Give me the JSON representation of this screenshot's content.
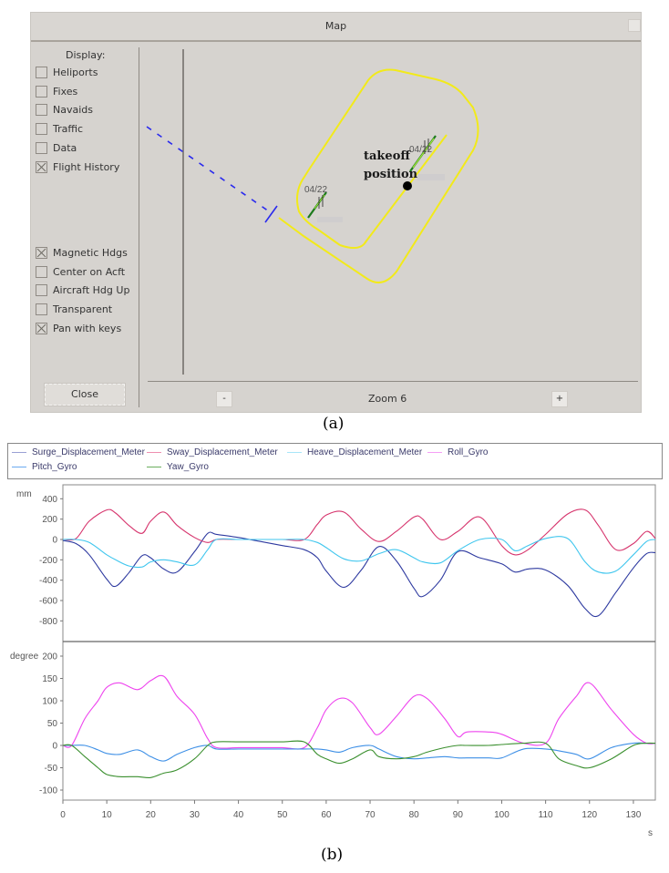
{
  "window": {
    "title": "Map",
    "display_label": "Display:",
    "checkboxes_top": [
      {
        "label": "Heliports",
        "checked": false
      },
      {
        "label": "Fixes",
        "checked": false
      },
      {
        "label": "Navaids",
        "checked": false
      },
      {
        "label": "Traffic",
        "checked": false
      },
      {
        "label": "Data",
        "checked": false
      },
      {
        "label": "Flight History",
        "checked": true
      }
    ],
    "checkboxes_bottom": [
      {
        "label": "Magnetic Hdgs",
        "checked": true
      },
      {
        "label": "Center on Acft",
        "checked": false
      },
      {
        "label": "Aircraft Hdg Up",
        "checked": false
      },
      {
        "label": "Transparent",
        "checked": false
      },
      {
        "label": "Pan with keys",
        "checked": true
      }
    ],
    "close_label": "Close",
    "zoom_minus": "-",
    "zoom_plus": "+",
    "zoom_label": "Zoom 6",
    "map": {
      "runway_labels": [
        "04/22",
        "04/22"
      ],
      "annotation_line1": "takeoff",
      "annotation_line2": "position",
      "colors": {
        "flight_path": "#f2ea1a",
        "approach": "#2a2aee",
        "runway": "#1c7a1c",
        "runway_hi": "#a6e83a"
      }
    }
  },
  "captions": {
    "a": "(a)",
    "b": "(b)"
  },
  "legend": {
    "items": [
      {
        "label": "Surge_Displacement_Meter",
        "color": "#2e3aa0"
      },
      {
        "label": "Sway_Displacement_Meter",
        "color": "#d6336c"
      },
      {
        "label": "Heave_Displacement_Meter",
        "color": "#3fc6ee"
      },
      {
        "label": "Roll_Gyro",
        "color": "#ee44ee"
      },
      {
        "label": "Pitch_Gyro",
        "color": "#3d8fe6"
      },
      {
        "label": "Yaw_Gyro",
        "color": "#3a8f2e"
      }
    ]
  },
  "chart_data": [
    {
      "type": "line",
      "title": "",
      "ylabel": "mm",
      "xlabel": "s",
      "xlim": [
        0,
        135
      ],
      "ylim": [
        -1000,
        500
      ],
      "yticks": [
        400,
        200,
        0,
        -200,
        -400,
        -600,
        -800
      ],
      "grid": false,
      "legend_position": "top",
      "x": [
        0,
        3,
        6,
        10,
        12,
        15,
        18,
        20,
        23,
        26,
        30,
        33,
        35,
        40,
        45,
        50,
        55,
        58,
        60,
        64,
        68,
        72,
        76,
        80,
        82,
        86,
        90,
        95,
        100,
        103,
        106,
        110,
        115,
        119,
        122,
        126,
        130,
        133,
        135
      ],
      "series": [
        {
          "name": "Surge_Displacement_Meter",
          "values": [
            -10,
            -40,
            -150,
            -390,
            -460,
            -330,
            -160,
            -180,
            -290,
            -320,
            -120,
            60,
            50,
            20,
            -20,
            -60,
            -100,
            -180,
            -310,
            -470,
            -300,
            -70,
            -210,
            -480,
            -560,
            -400,
            -120,
            -180,
            -240,
            -320,
            -290,
            -300,
            -450,
            -680,
            -750,
            -520,
            -280,
            -140,
            -130
          ]
        },
        {
          "name": "Sway_Displacement_Meter",
          "values": [
            0,
            10,
            180,
            290,
            260,
            140,
            60,
            180,
            270,
            140,
            20,
            -30,
            0,
            0,
            0,
            0,
            0,
            150,
            240,
            270,
            100,
            -20,
            80,
            220,
            200,
            0,
            80,
            220,
            -60,
            -150,
            -100,
            50,
            250,
            290,
            140,
            -100,
            -40,
            80,
            10
          ]
        },
        {
          "name": "Heave_Displacement_Meter",
          "values": [
            0,
            0,
            -30,
            -150,
            -200,
            -260,
            -270,
            -220,
            -200,
            -220,
            -250,
            -100,
            0,
            0,
            0,
            0,
            0,
            -30,
            -80,
            -190,
            -210,
            -140,
            -100,
            -180,
            -220,
            -230,
            -110,
            0,
            0,
            -110,
            -60,
            10,
            10,
            -220,
            -320,
            -310,
            -150,
            -20,
            0
          ]
        }
      ]
    },
    {
      "type": "line",
      "title": "",
      "ylabel": "degree",
      "xlabel": "s",
      "xlim": [
        0,
        135
      ],
      "ylim": [
        -140,
        220
      ],
      "yticks": [
        200,
        150,
        100,
        50,
        0,
        -50,
        -100
      ],
      "xticks": [
        0,
        10,
        20,
        30,
        40,
        50,
        60,
        70,
        80,
        90,
        100,
        110,
        120,
        130
      ],
      "grid": false,
      "x": [
        0,
        2,
        5,
        8,
        10,
        13,
        17,
        20,
        23,
        26,
        30,
        33,
        35,
        40,
        45,
        50,
        55,
        58,
        60,
        63,
        66,
        70,
        72,
        76,
        80,
        83,
        87,
        90,
        92,
        97,
        100,
        105,
        110,
        113,
        117,
        120,
        125,
        130,
        133,
        135
      ],
      "series": [
        {
          "name": "Roll_Gyro",
          "values": [
            0,
            0,
            60,
            100,
            130,
            140,
            125,
            145,
            155,
            110,
            70,
            15,
            -5,
            -5,
            -5,
            -5,
            -5,
            40,
            80,
            105,
            95,
            40,
            25,
            65,
            110,
            105,
            60,
            20,
            30,
            30,
            25,
            5,
            5,
            60,
            110,
            140,
            80,
            25,
            5,
            5
          ]
        },
        {
          "name": "Pitch_Gyro",
          "values": [
            0,
            0,
            0,
            -10,
            -18,
            -20,
            -10,
            -25,
            -35,
            -20,
            -5,
            0,
            -8,
            -8,
            -8,
            -8,
            -8,
            -8,
            -10,
            -15,
            -5,
            0,
            -8,
            -25,
            -30,
            -28,
            -25,
            -28,
            -28,
            -28,
            -28,
            -8,
            -8,
            -12,
            -20,
            -30,
            -5,
            5,
            5,
            5
          ]
        },
        {
          "name": "Yaw_Gyro",
          "values": [
            0,
            0,
            -25,
            -50,
            -65,
            -70,
            -70,
            -72,
            -62,
            -55,
            -30,
            0,
            8,
            8,
            8,
            8,
            8,
            -20,
            -30,
            -40,
            -30,
            -10,
            -25,
            -30,
            -25,
            -15,
            -5,
            0,
            0,
            0,
            2,
            5,
            5,
            -30,
            -45,
            -50,
            -30,
            0,
            5,
            5
          ]
        }
      ]
    }
  ]
}
